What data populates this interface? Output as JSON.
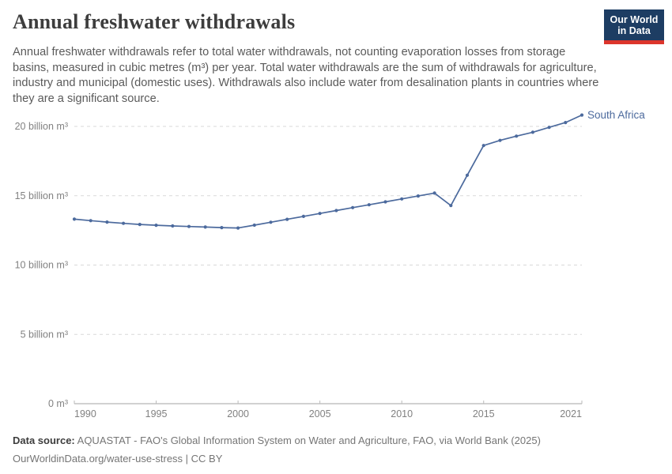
{
  "header": {
    "title": "Annual freshwater withdrawals",
    "logo": {
      "line1": "Our World",
      "line2": "in Data",
      "bg_color": "#1d3d63",
      "accent_color": "#dc352c"
    }
  },
  "subtitle": "Annual freshwater withdrawals refer to total water withdrawals, not counting evaporation losses from storage basins, measured in cubic metres (m³) per year. Total water withdrawals are the sum of withdrawals for agriculture, industry and municipal (domestic uses). Withdrawals also include water from desalination plants in countries where they are a significant source.",
  "chart_data": {
    "type": "line",
    "title": "Annual freshwater withdrawals",
    "entity": "South Africa",
    "unit": "billion m³",
    "line_color": "#4c6a9d",
    "grid": "horizontal-dashed",
    "legend_position": "end-of-line-label",
    "xlim": [
      1990,
      2021
    ],
    "ylim": [
      0,
      21.3
    ],
    "x_ticks": [
      1990,
      1995,
      2000,
      2005,
      2010,
      2015,
      2021
    ],
    "y_ticks": [
      {
        "value": 0,
        "label": "0 m³"
      },
      {
        "value": 5,
        "label": "5 billion m³"
      },
      {
        "value": 10,
        "label": "10 billion m³"
      },
      {
        "value": 15,
        "label": "15 billion m³"
      },
      {
        "value": 20,
        "label": "20 billion m³"
      }
    ],
    "x": [
      1990,
      1991,
      1992,
      1993,
      1994,
      1995,
      1996,
      1997,
      1998,
      1999,
      2000,
      2001,
      2002,
      2003,
      2004,
      2005,
      2006,
      2007,
      2008,
      2009,
      2010,
      2011,
      2012,
      2013,
      2014,
      2015,
      2016,
      2017,
      2018,
      2019,
      2020,
      2021
    ],
    "values": [
      13.31,
      13.2,
      13.1,
      13.01,
      12.93,
      12.87,
      12.82,
      12.78,
      12.74,
      12.7,
      12.67,
      12.88,
      13.09,
      13.3,
      13.51,
      13.72,
      13.93,
      14.14,
      14.35,
      14.56,
      14.77,
      14.98,
      15.19,
      14.29,
      16.48,
      18.62,
      18.99,
      19.3,
      19.58,
      19.93,
      20.28,
      20.82
    ]
  },
  "footer": {
    "source_label": "Data source:",
    "source_text": " AQUASTAT - FAO's Global Information System on Water and Agriculture, FAO, via World Bank (2025)",
    "url": "OurWorldinData.org/water-use-stress",
    "separator": " | ",
    "license": "CC BY"
  }
}
